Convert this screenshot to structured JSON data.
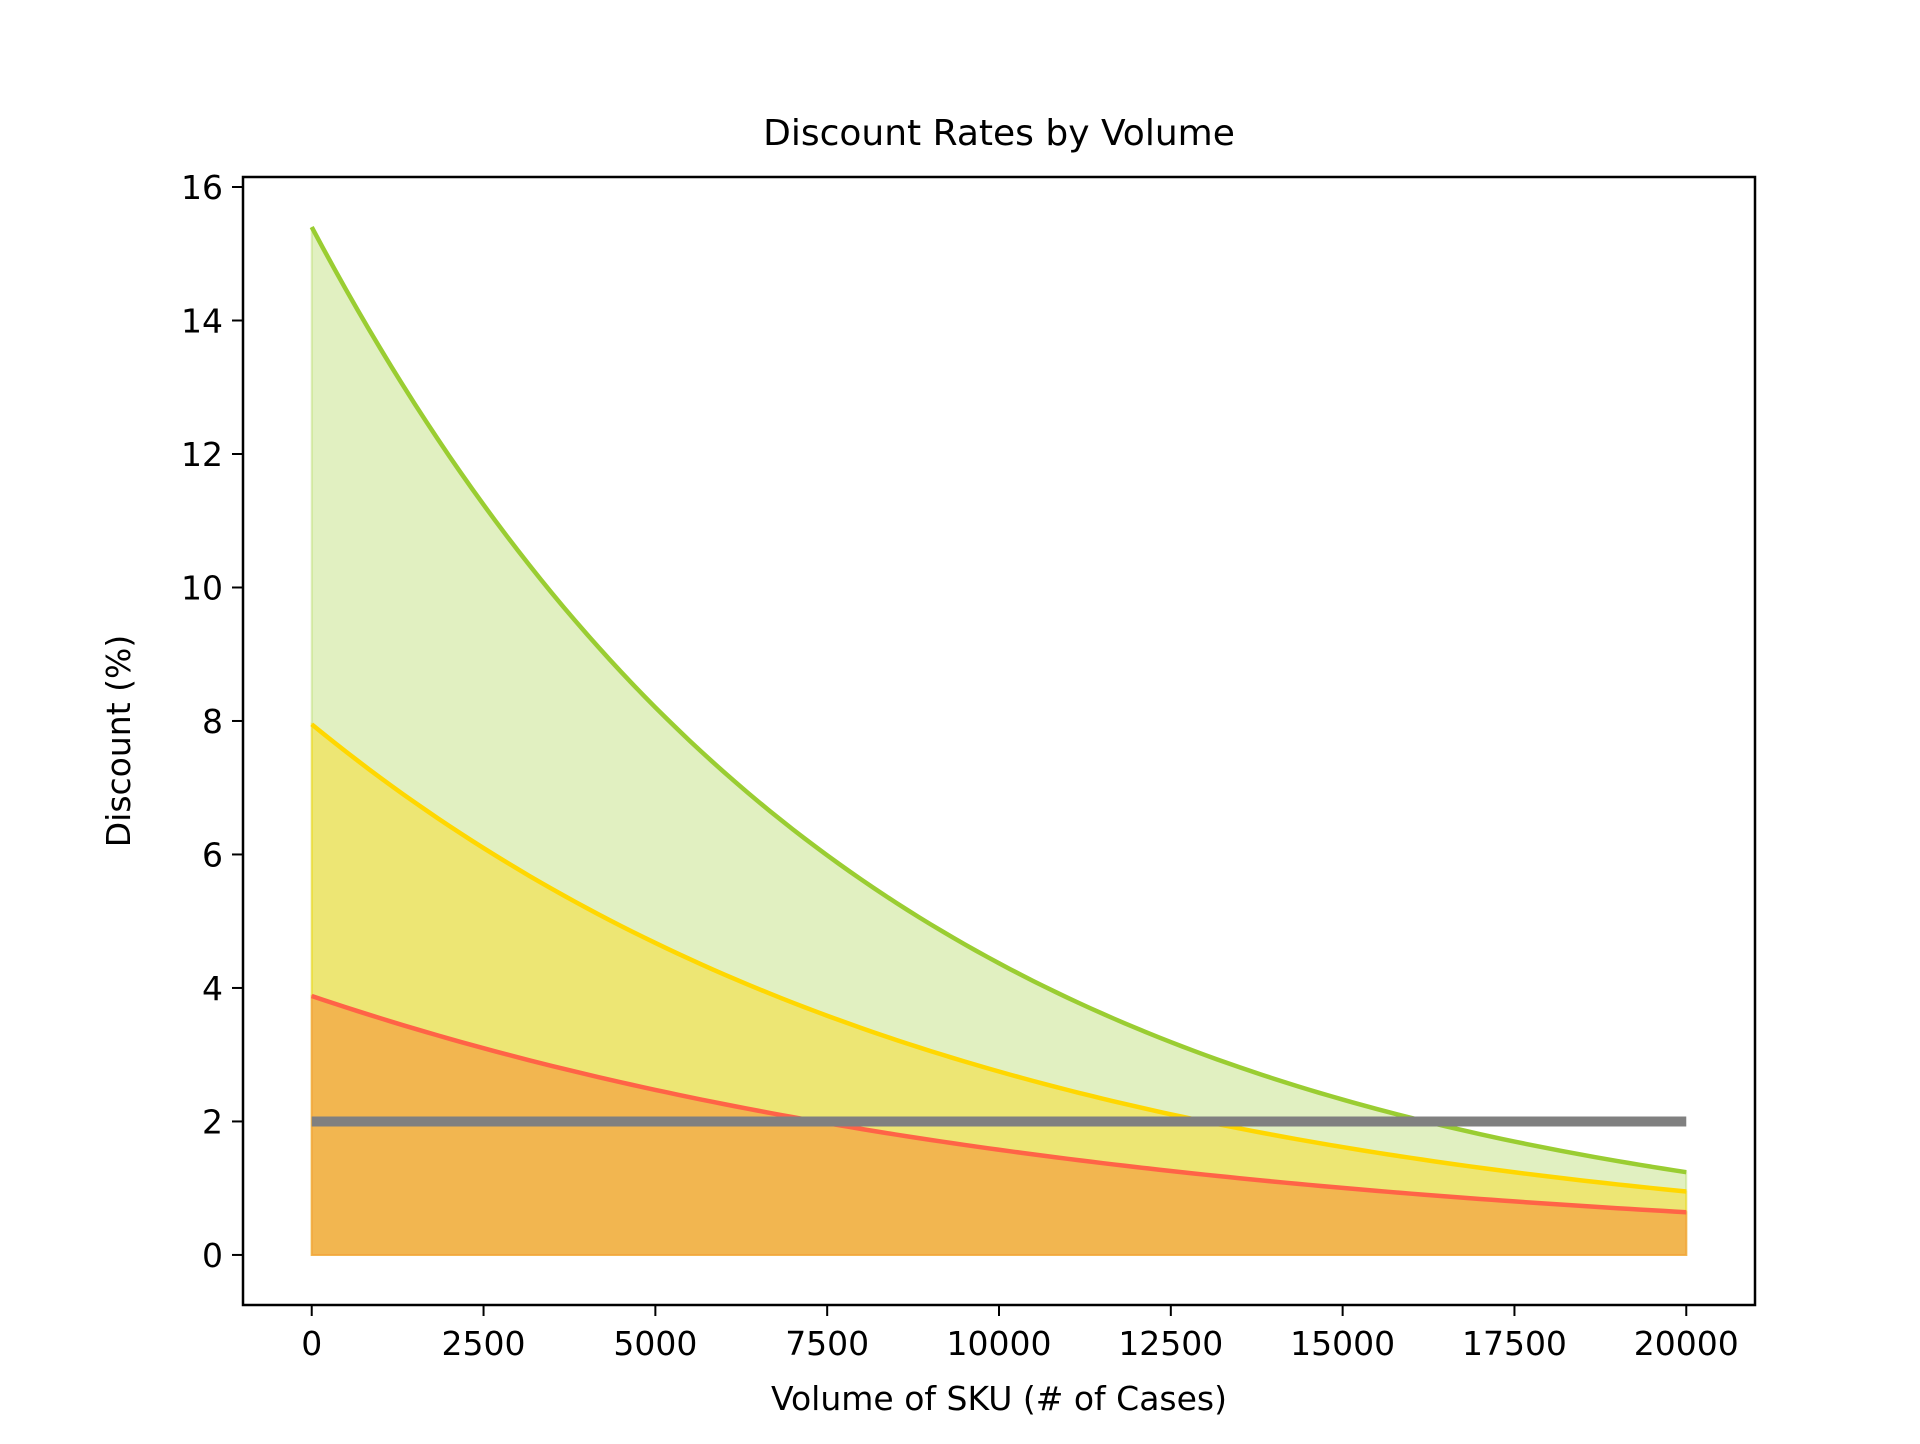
{
  "chart_data": {
    "type": "area",
    "title": "Discount Rates by Volume",
    "xlabel": "Volume of SKU (# of Cases)",
    "ylabel": "Discount (%)",
    "xlim": [
      -1000,
      21000
    ],
    "ylim": [
      -0.75,
      16.15
    ],
    "xticks": [
      0,
      2500,
      5000,
      7500,
      10000,
      12500,
      15000,
      17500,
      20000
    ],
    "yticks": [
      0,
      2,
      4,
      6,
      8,
      10,
      12,
      14,
      16
    ],
    "grid": false,
    "legend": "none",
    "x_range": [
      0,
      20000
    ],
    "series": [
      {
        "color": "#9acd32",
        "fill_color": "#9acd32",
        "fill_opacity": 0.3,
        "start_value": 15.4,
        "end_value": 1.24
      },
      {
        "color": "#ffd700",
        "fill_color": "#ffd700",
        "fill_opacity": 0.4,
        "start_value": 7.95,
        "end_value": 0.95
      },
      {
        "color": "#ff6347",
        "fill_color": "#f4a142",
        "fill_opacity": 0.7,
        "start_value": 3.88,
        "end_value": 0.64
      }
    ],
    "reference_line": {
      "value": 2.0,
      "color": "#808080"
    }
  }
}
